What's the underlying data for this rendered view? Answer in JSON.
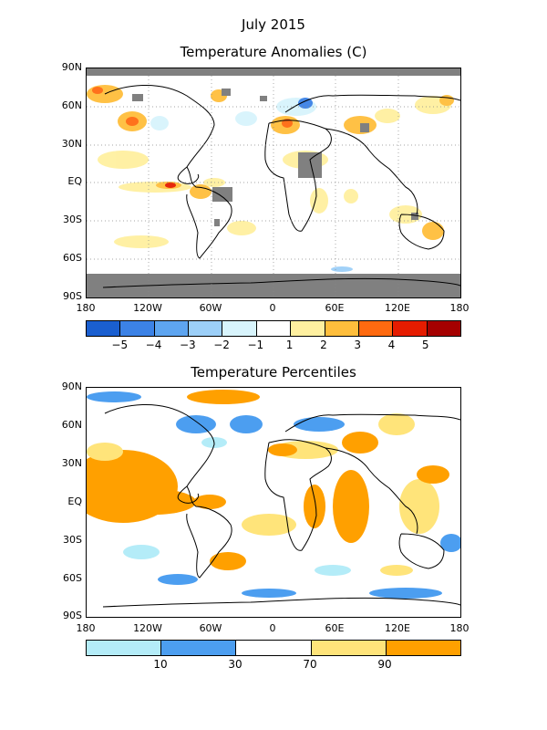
{
  "titles": {
    "month": "July 2015",
    "anomalies": "Temperature Anomalies (C)",
    "percentiles": "Temperature Percentiles"
  },
  "lat_labels": [
    "90N",
    "60N",
    "30N",
    "EQ",
    "30S",
    "60S",
    "90S"
  ],
  "lon_labels": [
    "180",
    "120W",
    "60W",
    "0",
    "60E",
    "120E",
    "180"
  ],
  "anomaly_scale": {
    "colors": [
      "#1a5fd0",
      "#3c82e6",
      "#5ea5f0",
      "#9ccff8",
      "#d8f4fc",
      "#ffffff",
      "#fff0a0",
      "#ffbe3c",
      "#ff6a10",
      "#e51c00",
      "#a50000"
    ],
    "labels": [
      "−5",
      "−4",
      "−3",
      "−2",
      "−1",
      "1",
      "2",
      "3",
      "4",
      "5"
    ]
  },
  "percentile_scale": {
    "colors": [
      "#b4ecf8",
      "#4c9ef0",
      "#ffffff",
      "#ffe47a",
      "#ffa000"
    ],
    "labels": [
      "10",
      "30",
      "70",
      "90"
    ]
  },
  "colors": {
    "missing": "#808080",
    "land_outline": "#000000",
    "grid": "#888888"
  }
}
